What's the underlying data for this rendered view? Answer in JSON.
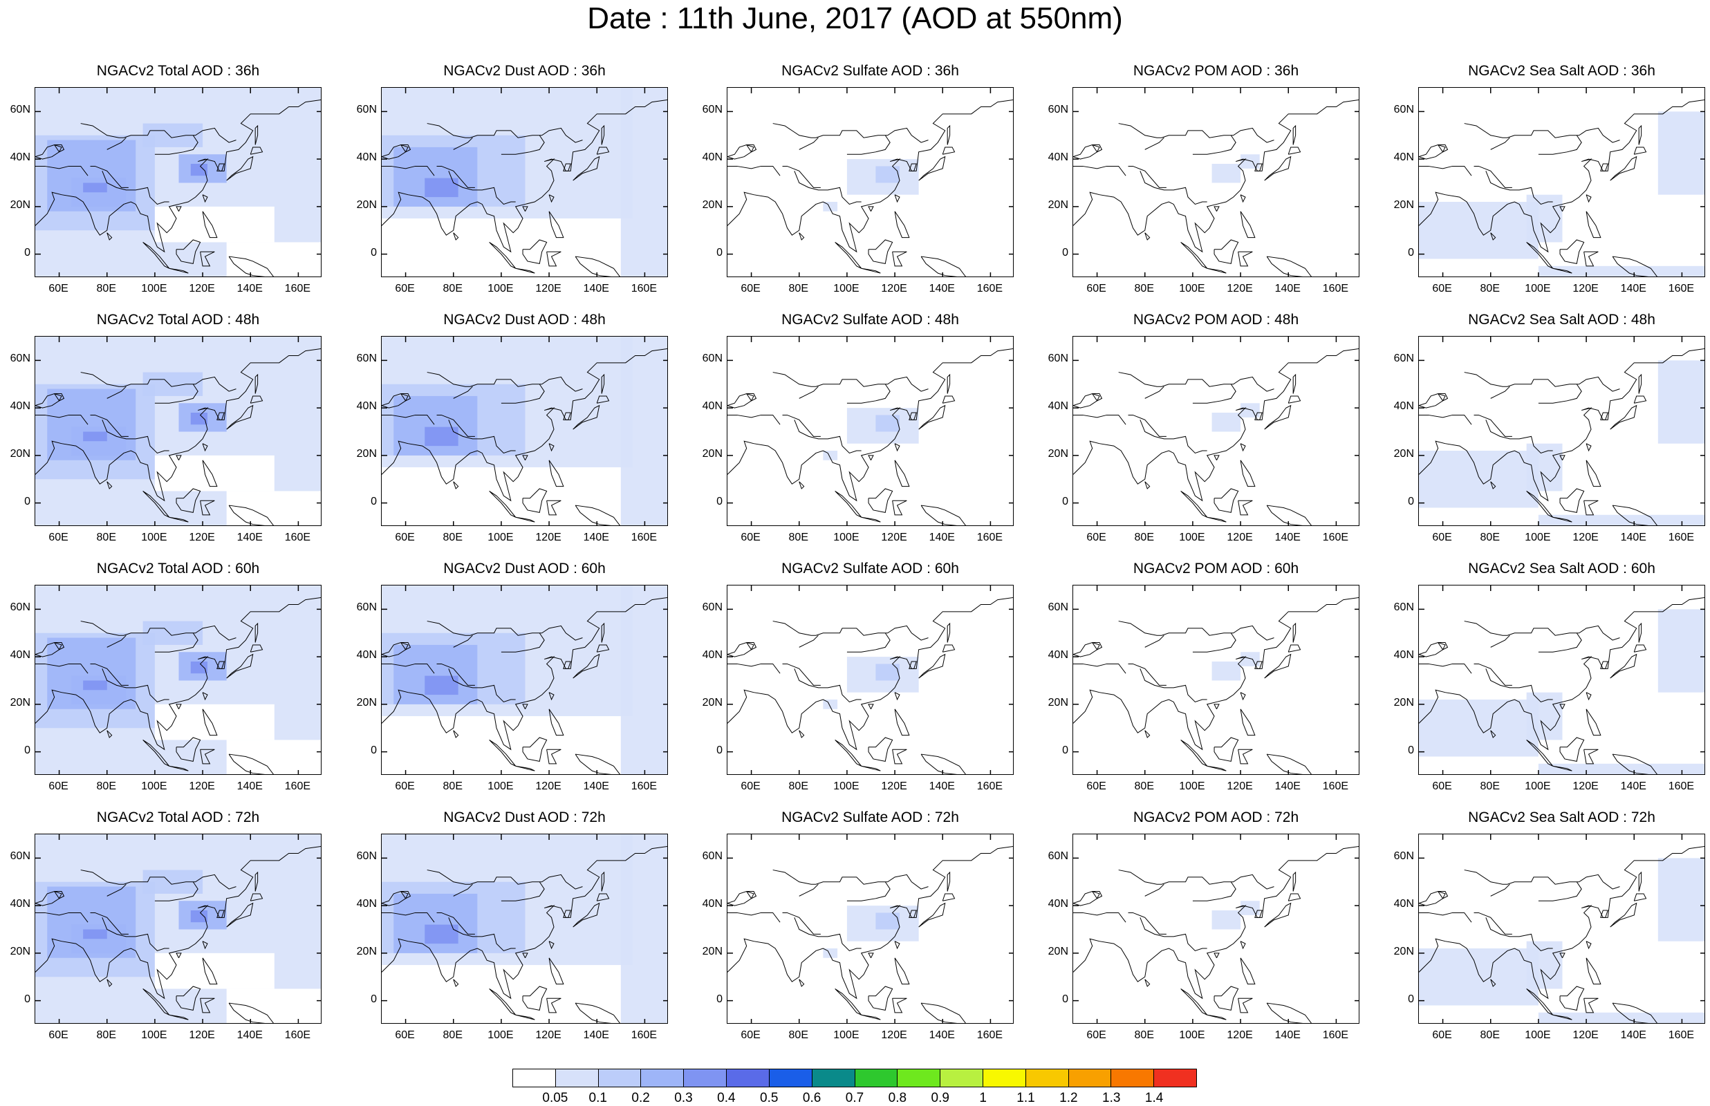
{
  "title": "Date : 11th June, 2017 (AOD at 550nm)",
  "panel_titles": [
    [
      "NGACv2 Total AOD : 36h",
      "NGACv2 Dust AOD : 36h",
      "NGACv2 Sulfate AOD : 36h",
      "NGACv2 POM AOD : 36h",
      "NGACv2 Sea Salt AOD : 36h"
    ],
    [
      "NGACv2 Total AOD : 48h",
      "NGACv2 Dust AOD : 48h",
      "NGACv2 Sulfate AOD : 48h",
      "NGACv2 POM AOD : 48h",
      "NGACv2 Sea Salt AOD : 48h"
    ],
    [
      "NGACv2 Total AOD : 60h",
      "NGACv2 Dust AOD : 60h",
      "NGACv2 Sulfate AOD : 60h",
      "NGACv2 POM AOD : 60h",
      "NGACv2 Sea Salt AOD : 60h"
    ],
    [
      "NGACv2 Total AOD : 72h",
      "NGACv2 Dust AOD : 72h",
      "NGACv2 Sulfate AOD : 72h",
      "NGACv2 POM AOD : 72h",
      "NGACv2 Sea Salt  AOD : 72h"
    ]
  ],
  "map_axes": {
    "lat_labels": [
      "60N",
      "40N",
      "20N",
      "0"
    ],
    "lon_labels": [
      "60E",
      "80E",
      "100E",
      "120E",
      "140E",
      "160E"
    ],
    "lat_values": [
      60,
      40,
      20,
      0
    ],
    "lon_values": [
      60,
      80,
      100,
      120,
      140,
      160
    ],
    "lon_range": [
      50,
      170
    ],
    "lat_range": [
      -10,
      70
    ]
  },
  "colorbar": {
    "labels": [
      "0.05",
      "0.1",
      "0.2",
      "0.3",
      "0.4",
      "0.5",
      "0.6",
      "0.7",
      "0.8",
      "0.9",
      "1",
      "1.1",
      "1.2",
      "1.3",
      "1.4"
    ],
    "colors": [
      "#ffffff",
      "#d7e1fa",
      "#bccdfa",
      "#9eb5f8",
      "#7f94f2",
      "#5a6be8",
      "#1a5ee8",
      "#0a8a8a",
      "#2ec82e",
      "#6ee81e",
      "#b8f040",
      "#f8f800",
      "#f8c800",
      "#f8a000",
      "#f87800",
      "#f03020"
    ]
  }
}
